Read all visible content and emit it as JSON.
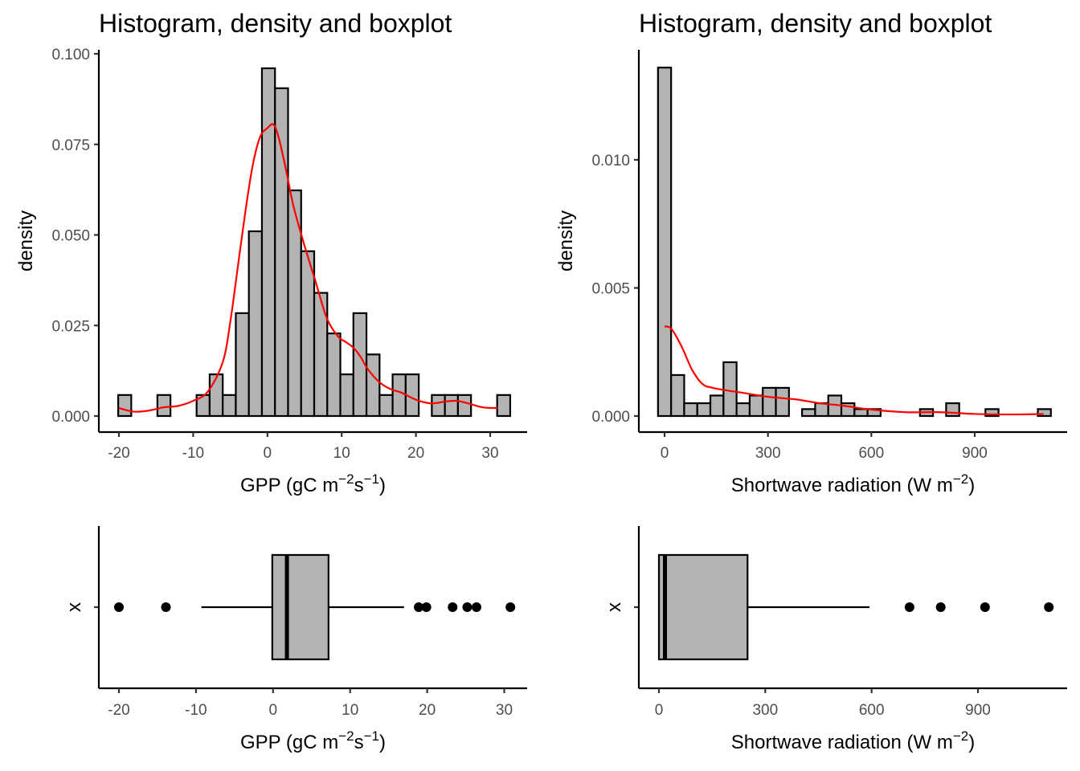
{
  "chart_data": [
    {
      "type": "histogram",
      "title": "Histogram, density and boxplot",
      "xlabel": "GPP (gC m^-2 s^-1)",
      "xlabel_parts": [
        "GPP (gC m",
        "−2",
        "s",
        "−1",
        ")"
      ],
      "ylabel": "density",
      "xlim": [
        -22.4,
        35.2
      ],
      "ylim": [
        0,
        0.1045
      ],
      "xticks": [
        -20,
        -10,
        0,
        10,
        20,
        30
      ],
      "xtick_labels": [
        "-20",
        "-10",
        "0",
        "10",
        "20",
        "30"
      ],
      "yticks": [
        0,
        0.025,
        0.05,
        0.075,
        0.1
      ],
      "ytick_labels": [
        "0.000",
        "0.025",
        "0.050",
        "0.075",
        "0.100"
      ],
      "bin_start": -20.1,
      "bin_width": 1.76,
      "values": [
        0.0058,
        0,
        0,
        0.0058,
        0,
        0,
        0.0058,
        0.0115,
        0.0058,
        0.0284,
        0.051,
        0.096,
        0.0905,
        0.0623,
        0.0455,
        0.034,
        0.0228,
        0.0115,
        0.0284,
        0.017,
        0.0058,
        0.0115,
        0.0115,
        0,
        0.0058,
        0.0058,
        0.0058,
        0,
        0,
        0.0058
      ],
      "fill_color": "#b3b3b3",
      "density_color": "#ff0000",
      "density_curve": {
        "x": [
          -20,
          -18,
          -16,
          -14,
          -12,
          -10,
          -8,
          -6,
          -5,
          -4,
          -3,
          -2,
          -1,
          0,
          0.8,
          1.5,
          2.5,
          3.5,
          5,
          6.5,
          8,
          9.5,
          10.5,
          11.5,
          12.5,
          13.5,
          15,
          16.5,
          18,
          20,
          22,
          24,
          25.5,
          27,
          29,
          31
        ],
        "y": [
          0.0022,
          0.0012,
          0.0015,
          0.0024,
          0.0028,
          0.0042,
          0.0068,
          0.015,
          0.026,
          0.041,
          0.056,
          0.069,
          0.077,
          0.0795,
          0.0805,
          0.077,
          0.068,
          0.058,
          0.047,
          0.037,
          0.027,
          0.022,
          0.0205,
          0.019,
          0.0165,
          0.013,
          0.0095,
          0.0075,
          0.0065,
          0.0045,
          0.0035,
          0.004,
          0.0042,
          0.0035,
          0.0024,
          0.0022
        ]
      }
    },
    {
      "type": "histogram",
      "title": "Histogram, density and boxplot",
      "xlabel": "Shortwave radiation (W m^-2)",
      "xlabel_parts": [
        "Shortwave radiation (W m",
        "−2",
        ")"
      ],
      "ylabel": "density",
      "xlim": [
        -72,
        1180
      ],
      "ylim": [
        0,
        0.0142
      ],
      "xticks": [
        0,
        300,
        600,
        900
      ],
      "xtick_labels": [
        "0",
        "300",
        "600",
        "900"
      ],
      "yticks": [
        0,
        0.005,
        0.01
      ],
      "ytick_labels": [
        "0.000",
        "0.005",
        "0.010"
      ],
      "bin_start": -19,
      "bin_width": 38,
      "values": [
        0.0136,
        0.0016,
        0.0005,
        0.0005,
        0.0008,
        0.0021,
        0.0005,
        0.0008,
        0.0011,
        0.0011,
        0,
        0.00027,
        0.0005,
        0.0008,
        0.0005,
        0.00027,
        0.00027,
        0,
        0,
        0,
        0.00027,
        0,
        0.0005,
        0,
        0,
        0.00027,
        0,
        0,
        0,
        0.00027
      ],
      "fill_color": "#b3b3b3",
      "density_color": "#ff0000",
      "density_curve": {
        "x": [
          0,
          20,
          50,
          80,
          110,
          140,
          180,
          230,
          300,
          380,
          450,
          520,
          600,
          700,
          800,
          900,
          1000,
          1100
        ],
        "y": [
          0.0035,
          0.0034,
          0.0027,
          0.0018,
          0.00125,
          0.0011,
          0.001,
          0.0009,
          0.00075,
          0.00065,
          0.0005,
          0.0004,
          0.00025,
          0.00015,
          0.00015,
          8e-05,
          6e-05,
          8e-05
        ]
      }
    },
    {
      "type": "boxplot",
      "xlabel": "GPP (gC m^-2 s^-1)",
      "xlabel_parts": [
        "GPP (gC m",
        "−2",
        "s",
        "−1",
        ")"
      ],
      "ylabel": "x",
      "xlim": [
        -22.4,
        33.4
      ],
      "xticks": [
        -20,
        -10,
        0,
        10,
        20,
        30
      ],
      "xtick_labels": [
        "-20",
        "-10",
        "0",
        "10",
        "20",
        "30"
      ],
      "whisker_low": -9.3,
      "q1": -0.1,
      "median": 1.8,
      "q3": 7.2,
      "whisker_high": 17.0,
      "outliers": [
        -20,
        -13.9,
        18.9,
        19.9,
        23.3,
        25.2,
        26.4,
        30.8
      ],
      "fill_color": "#b3b3b3"
    },
    {
      "type": "boxplot",
      "xlabel": "Shortwave radiation (W m^-2)",
      "xlabel_parts": [
        "Shortwave radiation (W m",
        "−2",
        ")"
      ],
      "ylabel": "x",
      "xlim": [
        -55,
        1155
      ],
      "xticks": [
        0,
        300,
        600,
        900
      ],
      "xtick_labels": [
        "0",
        "300",
        "600",
        "900"
      ],
      "whisker_low": 0,
      "q1": 0,
      "median": 17,
      "q3": 250,
      "whisker_high": 594,
      "outliers": [
        707,
        795,
        920,
        1100
      ],
      "fill_color": "#b3b3b3"
    }
  ]
}
